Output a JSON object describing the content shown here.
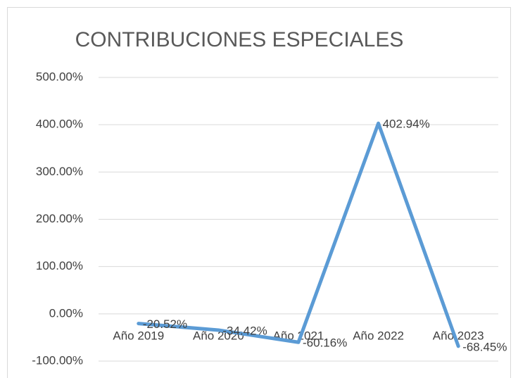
{
  "chart_data": {
    "type": "line",
    "title": "CONTRIBUCIONES ESPECIALES",
    "categories": [
      "Año 2019",
      "Año 2020",
      "Año 2021",
      "Año 2022",
      "Año 2023"
    ],
    "series": [
      {
        "name": "CONTRIBUCIONES ESPECIALES",
        "color": "#5b9bd5",
        "values": [
          -20.52,
          -34.42,
          -60.16,
          402.94,
          -68.45
        ],
        "value_labels": [
          "-20.52%",
          "-34.42%",
          "-60.16%",
          "402.94%",
          "-68.45%"
        ]
      }
    ],
    "ylim": [
      -100,
      500
    ],
    "yticks": [
      {
        "value": -100,
        "label": "-100.00%"
      },
      {
        "value": 0,
        "label": "0.00%"
      },
      {
        "value": 100,
        "label": "100.00%"
      },
      {
        "value": 200,
        "label": "200.00%"
      },
      {
        "value": 300,
        "label": "300.00%"
      },
      {
        "value": 400,
        "label": "400.00%"
      },
      {
        "value": 500,
        "label": "500.00%"
      }
    ],
    "grid": true
  }
}
